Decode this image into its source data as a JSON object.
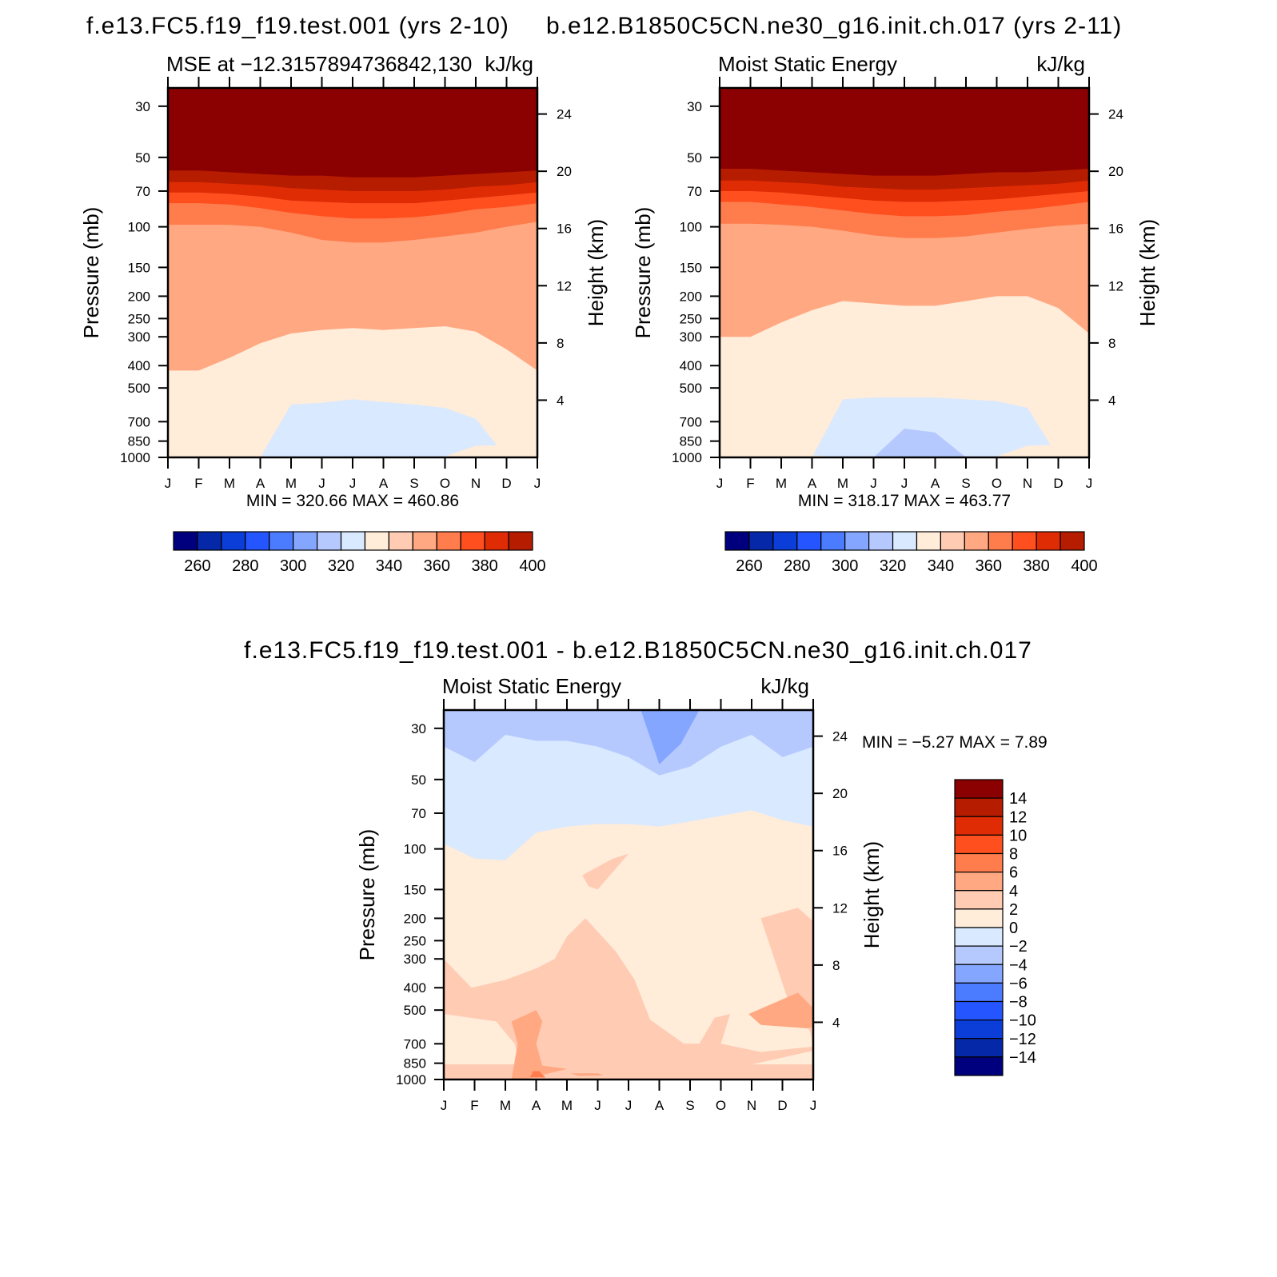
{
  "figure": {
    "title_left": "f.e13.FC5.f19_f19.test.001 (yrs 2-10)",
    "title_right": "b.e12.B1850C5CN.ne30_g16.init.ch.017 (yrs 2-11)",
    "title_diff": "f.e13.FC5.f19_f19.test.001 - b.e12.B1850C5CN.ne30_g16.init.ch.017"
  },
  "chart_data": [
    {
      "id": "left",
      "type": "heatmap",
      "left_label": "Moist Static Energy",
      "left_label_overlay": "MSE at -12.3157894736842,130",
      "units": "kJ/kg",
      "xlabel": "",
      "ylabel": "Pressure (mb)",
      "y2label": "Height (km)",
      "x_ticks": [
        "J",
        "F",
        "M",
        "A",
        "M",
        "J",
        "J",
        "A",
        "S",
        "O",
        "N",
        "D",
        "J"
      ],
      "y_ticks": [
        30,
        50,
        70,
        100,
        150,
        200,
        250,
        300,
        400,
        500,
        700,
        850,
        1000
      ],
      "y2_ticks": [
        4,
        8,
        12,
        16,
        20,
        24
      ],
      "ylim": [
        1000,
        25
      ],
      "y_scale": "log",
      "min_max": "MIN =  320.66  MAX =  460.86",
      "colorbar": {
        "levels": [
          260,
          270,
          280,
          290,
          300,
          310,
          320,
          330,
          340,
          350,
          360,
          370,
          380,
          390,
          400,
          410
        ],
        "tick_labels": [
          "260",
          "280",
          "300",
          "320",
          "340",
          "360",
          "380",
          "400"
        ]
      },
      "bands": [
        {
          "level": 400,
          "boundary_p": [
            57,
            57,
            58,
            59,
            60,
            60,
            61,
            61,
            61,
            60,
            59,
            58,
            57
          ]
        },
        {
          "level": 390,
          "boundary_p": [
            64,
            64,
            65,
            66,
            68,
            69,
            70,
            70,
            70,
            69,
            67,
            66,
            64
          ]
        },
        {
          "level": 380,
          "boundary_p": [
            71,
            71,
            72,
            74,
            77,
            78,
            79,
            79,
            79,
            77,
            75,
            73,
            71
          ]
        },
        {
          "level": 370,
          "boundary_p": [
            79,
            79,
            80,
            83,
            87,
            90,
            92,
            92,
            91,
            88,
            84,
            82,
            79
          ]
        },
        {
          "level": 360,
          "boundary_p": [
            98,
            98,
            98,
            100,
            106,
            114,
            117,
            117,
            114,
            110,
            106,
            100,
            95
          ]
        },
        {
          "level": 340,
          "boundary_p": [
            420,
            420,
            370,
            320,
            290,
            280,
            275,
            280,
            275,
            270,
            285,
            340,
            420
          ]
        },
        {
          "level": 330,
          "boundary_p": [
            1000,
            1000,
            1000,
            1000,
            590,
            580,
            560,
            575,
            590,
            610,
            680,
            1000,
            1000
          ]
        }
      ],
      "regions": [
        {
          "level": 340,
          "description": "lower troposphere",
          "boundary_p": [
            880,
            880,
            890,
            990,
            1000,
            1000,
            1000,
            1000,
            1000,
            990,
            890,
            885,
            880
          ]
        }
      ]
    },
    {
      "id": "right",
      "type": "heatmap",
      "left_label": "Moist Static Energy",
      "units": "kJ/kg",
      "xlabel": "",
      "ylabel": "Pressure (mb)",
      "y2label": "Height (km)",
      "x_ticks": [
        "J",
        "F",
        "M",
        "A",
        "M",
        "J",
        "J",
        "A",
        "S",
        "O",
        "N",
        "D",
        "J"
      ],
      "y_ticks": [
        30,
        50,
        70,
        100,
        150,
        200,
        250,
        300,
        400,
        500,
        700,
        850,
        1000
      ],
      "y2_ticks": [
        4,
        8,
        12,
        16,
        20,
        24
      ],
      "ylim": [
        1000,
        25
      ],
      "y_scale": "log",
      "min_max": "MIN =  318.17  MAX =  463.77",
      "colorbar": {
        "levels": [
          260,
          270,
          280,
          290,
          300,
          310,
          320,
          330,
          340,
          350,
          360,
          370,
          380,
          390,
          400,
          410
        ],
        "tick_labels": [
          "260",
          "280",
          "300",
          "320",
          "340",
          "360",
          "380",
          "400"
        ]
      },
      "bands": [
        {
          "level": 400,
          "boundary_p": [
            56,
            56,
            57,
            58,
            59,
            60,
            60,
            60,
            59,
            58,
            58,
            57,
            56
          ]
        },
        {
          "level": 390,
          "boundary_p": [
            63,
            63,
            64,
            65,
            67,
            68,
            69,
            69,
            68,
            67,
            66,
            65,
            63
          ]
        },
        {
          "level": 380,
          "boundary_p": [
            70,
            70,
            71,
            73,
            75,
            77,
            78,
            78,
            77,
            76,
            74,
            72,
            70
          ]
        },
        {
          "level": 370,
          "boundary_p": [
            78,
            78,
            80,
            82,
            85,
            88,
            90,
            90,
            89,
            86,
            84,
            81,
            78
          ]
        },
        {
          "level": 360,
          "boundary_p": [
            97,
            97,
            98,
            100,
            104,
            109,
            112,
            112,
            110,
            106,
            102,
            99,
            97
          ]
        },
        {
          "level": 340,
          "boundary_p": [
            300,
            300,
            260,
            230,
            210,
            215,
            220,
            220,
            210,
            200,
            200,
            225,
            290
          ]
        },
        {
          "level": 330,
          "boundary_p": [
            1000,
            1000,
            1000,
            1000,
            560,
            550,
            550,
            550,
            560,
            570,
            610,
            1000,
            1000
          ]
        },
        {
          "level": 320,
          "boundary_p": [
            1000,
            1000,
            1000,
            1000,
            1000,
            1000,
            750,
            780,
            1000,
            1000,
            1000,
            1000,
            1000
          ]
        }
      ],
      "regions": [
        {
          "level": 340,
          "description": "lower troposphere",
          "boundary_p": [
            880,
            880,
            890,
            980,
            1000,
            1000,
            1000,
            1000,
            1000,
            990,
            890,
            880,
            880
          ]
        }
      ]
    },
    {
      "id": "diff",
      "type": "heatmap",
      "left_label": "Moist Static Energy",
      "units": "kJ/kg",
      "xlabel": "",
      "ylabel": "Pressure (mb)",
      "y2label": "Height (km)",
      "x_ticks": [
        "J",
        "F",
        "M",
        "A",
        "M",
        "J",
        "J",
        "A",
        "S",
        "O",
        "N",
        "D",
        "J"
      ],
      "y_ticks": [
        30,
        50,
        70,
        100,
        150,
        200,
        250,
        300,
        400,
        500,
        700,
        850,
        1000
      ],
      "y2_ticks": [
        4,
        8,
        12,
        16,
        20,
        24
      ],
      "ylim": [
        1000,
        25
      ],
      "y_scale": "log",
      "min_max": "MIN =   -5.27  MAX =     7.89",
      "colorbar": {
        "levels": [
          -16,
          -14,
          -12,
          -10,
          -8,
          -6,
          -4,
          -2,
          0,
          2,
          4,
          6,
          8,
          10,
          12,
          14,
          16
        ],
        "tick_labels": [
          "14",
          "12",
          "10",
          "8",
          "6",
          "4",
          "2",
          "0",
          "-2",
          "-4",
          "-6",
          "-8",
          "-10",
          "-12",
          "-14"
        ]
      },
      "base_level": -4,
      "bands": [
        {
          "level": -2,
          "boundary_p": [
            36,
            42,
            32,
            34,
            34,
            36,
            40,
            48,
            44,
            36,
            32,
            40,
            36
          ]
        },
        {
          "level": 0,
          "boundary_p": [
            95,
            110,
            112,
            85,
            80,
            78,
            78,
            80,
            76,
            72,
            68,
            75,
            80
          ]
        }
      ],
      "regions": [
        {
          "level": -6,
          "description": "upper blob",
          "ring": [
            [
              6.4,
              25
            ],
            [
              8.3,
              25
            ],
            [
              7.7,
              35
            ],
            [
              7.0,
              43
            ],
            [
              6.6,
              30
            ]
          ]
        },
        {
          "level": 2,
          "description": "small blob",
          "ring": [
            [
              4.5,
              130
            ],
            [
              5.5,
              110
            ],
            [
              6.0,
              105
            ],
            [
              5.0,
              150
            ],
            [
              4.7,
              145
            ]
          ]
        },
        {
          "level": 2,
          "description": "main lower region",
          "ring": [
            [
              0,
              300
            ],
            [
              0.9,
              400
            ],
            [
              2.0,
              370
            ],
            [
              3.0,
              330
            ],
            [
              3.6,
              300
            ],
            [
              4.0,
              240
            ],
            [
              4.6,
              200
            ],
            [
              5.6,
              280
            ],
            [
              6.2,
              370
            ],
            [
              6.7,
              550
            ],
            [
              7.8,
              700
            ],
            [
              8.3,
              700
            ],
            [
              8.8,
              540
            ],
            [
              9.3,
              520
            ],
            [
              9.0,
              700
            ],
            [
              10.3,
              760
            ],
            [
              12.0,
              720
            ],
            [
              11.9,
              620
            ],
            [
              11.2,
              460
            ],
            [
              10.7,
              290
            ],
            [
              10.3,
              200
            ],
            [
              11.5,
              180
            ],
            [
              12.4,
              230
            ],
            [
              12.4,
              280
            ],
            [
              12.6,
              350
            ],
            [
              12.5,
              650
            ],
            [
              12,
              750
            ],
            [
              10.0,
              860
            ],
            [
              12.0,
              860
            ],
            [
              12,
              1000
            ],
            [
              0,
              1000
            ],
            [
              0,
              860
            ],
            [
              2.5,
              860
            ],
            [
              2.3,
              700
            ],
            [
              1.7,
              560
            ],
            [
              0,
              520
            ]
          ]
        },
        {
          "level": 4,
          "description": "lower blob",
          "ring": [
            [
              2.2,
              560
            ],
            [
              3.0,
              500
            ],
            [
              3.2,
              560
            ],
            [
              3.0,
              700
            ],
            [
              3.2,
              870
            ],
            [
              4.0,
              900
            ],
            [
              2.6,
              1000
            ],
            [
              2.2,
              1000
            ],
            [
              2.4,
              700
            ]
          ]
        },
        {
          "level": 4,
          "description": "right blob",
          "ring": [
            [
              11.5,
              420
            ],
            [
              12.0,
              490
            ],
            [
              12.3,
              580
            ],
            [
              11.8,
              600
            ],
            [
              10.3,
              580
            ],
            [
              9.9,
              520
            ]
          ]
        },
        {
          "level": 6,
          "description": "surface blob",
          "ring": [
            [
              2.9,
              920
            ],
            [
              3.1,
              920
            ],
            [
              3.3,
              980
            ],
            [
              2.8,
              980
            ]
          ]
        },
        {
          "level": 4,
          "description": "surface strip",
          "ring": [
            [
              4.1,
              940
            ],
            [
              5.0,
              940
            ],
            [
              5.2,
              960
            ],
            [
              4.4,
              965
            ]
          ]
        }
      ]
    }
  ]
}
